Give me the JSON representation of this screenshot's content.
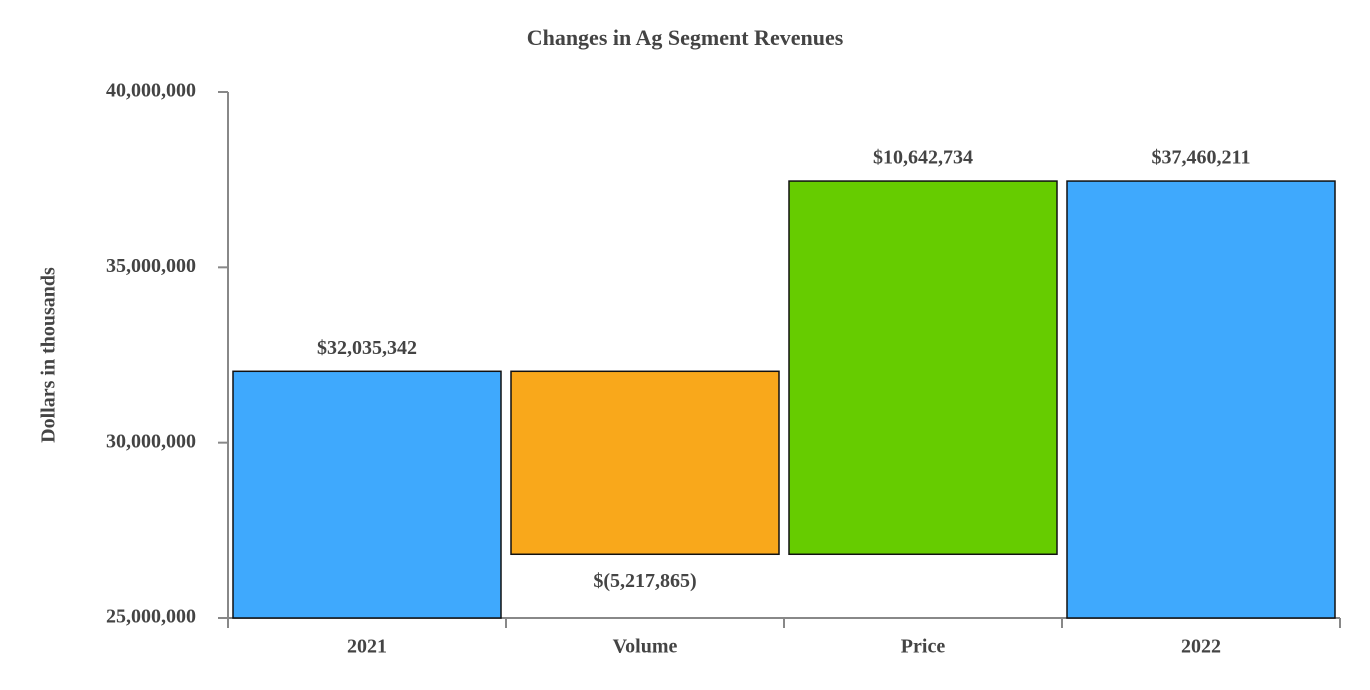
{
  "chart_data": {
    "type": "waterfall",
    "title": "Changes in Ag Segment Revenues",
    "y_label": "Dollars in thousands",
    "categories": [
      "2021",
      "Volume",
      "Price",
      "2022"
    ],
    "values": [
      32035342,
      -5217865,
      10642734,
      37460211
    ],
    "value_labels": [
      "$32,035,342",
      "$(5,217,865)",
      "$10,642,734",
      "$37,460,211"
    ],
    "colors": [
      "#3fa9fd",
      "#f9a81b",
      "#66cc00",
      "#3fa9fd"
    ],
    "ylim": [
      25000000,
      40000000
    ],
    "yticks": [
      {
        "value": 25000000,
        "label": "25,000,000"
      },
      {
        "value": 30000000,
        "label": "30,000,000"
      },
      {
        "value": 35000000,
        "label": "35,000,000"
      },
      {
        "value": 40000000,
        "label": "40,000,000"
      }
    ]
  }
}
